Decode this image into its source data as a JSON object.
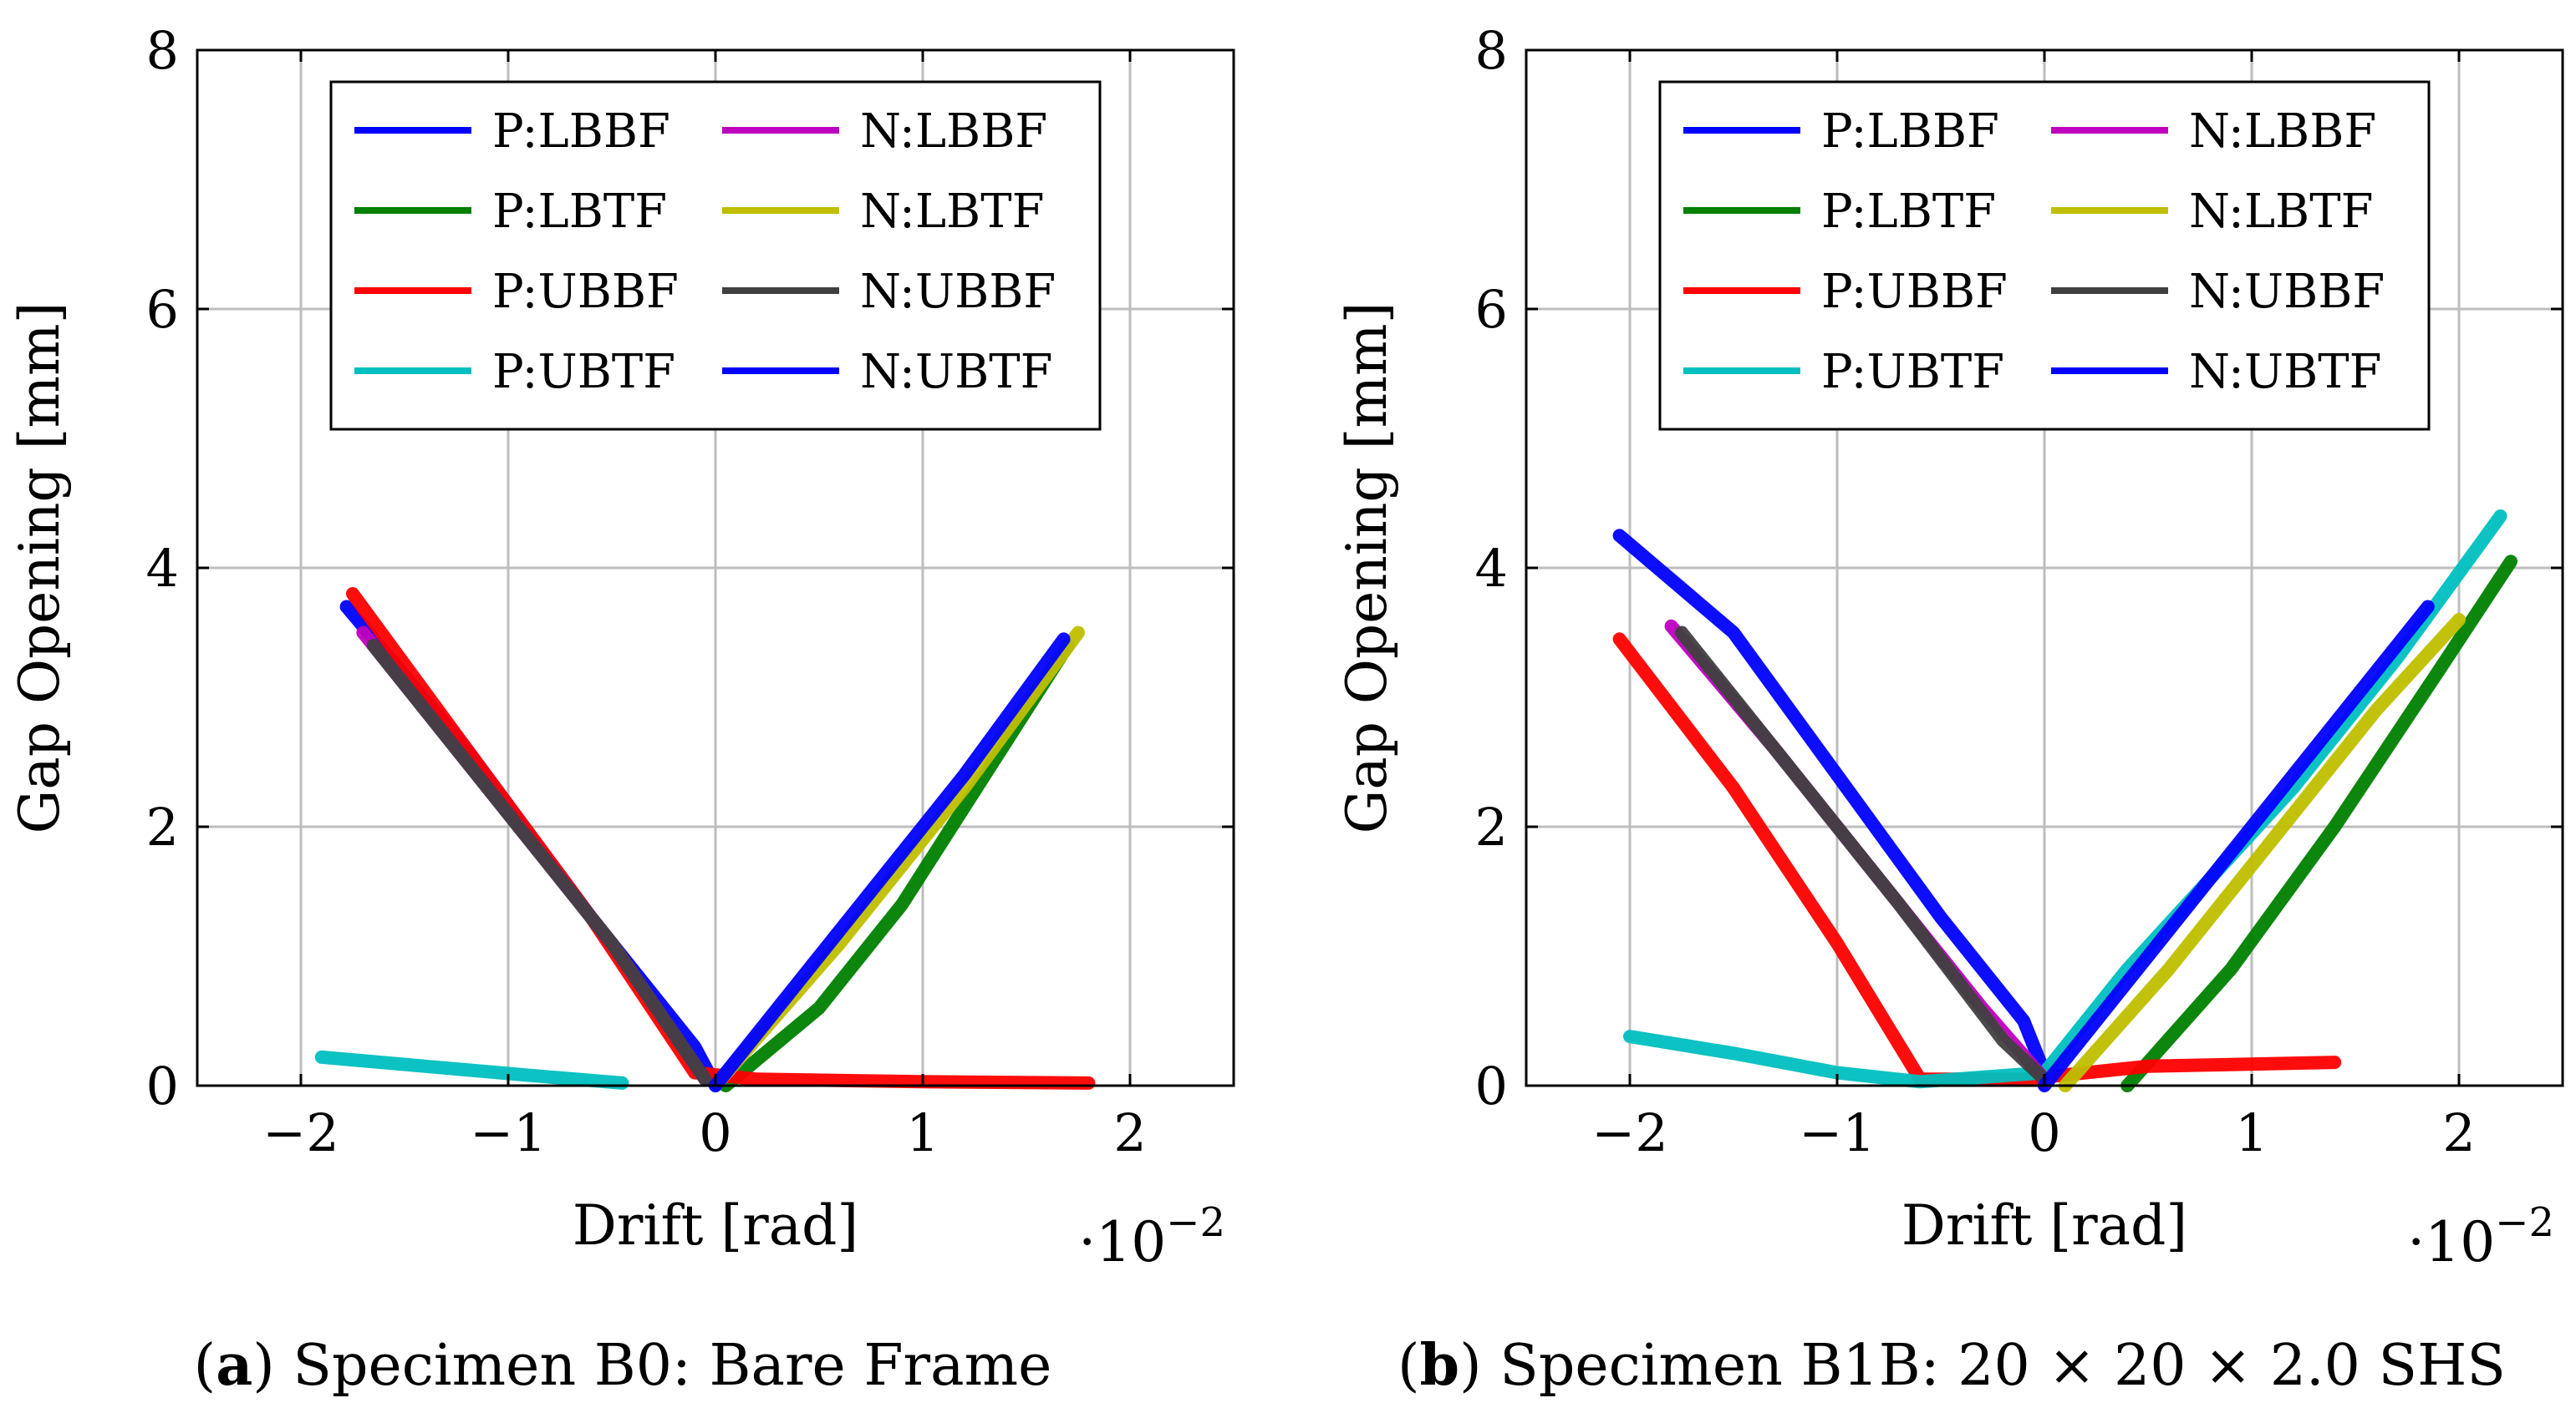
{
  "chart_data": [
    {
      "type": "line",
      "panel_label": "(a)",
      "caption_letter": "a",
      "caption_text": "Specimen B0: Bare Frame",
      "xlabel": "Drift [rad]",
      "ylabel": "Gap Opening [mm]",
      "x_multiplier": "·10",
      "x_multiplier_exp": "−2",
      "xlim": [
        -2.5,
        2.5
      ],
      "ylim": [
        0,
        8
      ],
      "xticks": [
        -2,
        -1,
        0,
        1,
        2
      ],
      "xtick_labels": [
        "−2",
        "−1",
        "0",
        "1",
        "2"
      ],
      "yticks": [
        0,
        2,
        4,
        6,
        8
      ],
      "ytick_labels": [
        "0",
        "2",
        "4",
        "6",
        "8"
      ],
      "grid": true,
      "legend_position": "top-center",
      "series": [
        {
          "name": "P:LBBF",
          "color": "#0000ff",
          "x": [
            -1.78,
            -1.2,
            -0.6,
            -0.1,
            0.0
          ],
          "y": [
            3.7,
            2.6,
            1.3,
            0.3,
            0.0
          ]
        },
        {
          "name": "P:LBTF",
          "color": "#008000",
          "x": [
            0.05,
            0.5,
            0.9,
            1.3,
            1.7
          ],
          "y": [
            0.0,
            0.6,
            1.4,
            2.4,
            3.4
          ]
        },
        {
          "name": "P:UBBF",
          "color": "#ff0000",
          "x": [
            -1.75,
            -1.2,
            -0.6,
            -0.1,
            0.2,
            1.0,
            1.8
          ],
          "y": [
            3.8,
            2.6,
            1.3,
            0.1,
            0.05,
            0.03,
            0.02
          ]
        },
        {
          "name": "P:UBTF",
          "color": "#00bfbf",
          "x": [
            -1.9,
            -1.4,
            -0.9,
            -0.45
          ],
          "y": [
            0.22,
            0.15,
            0.08,
            0.02
          ]
        },
        {
          "name": "N:LBBF",
          "color": "#bf00bf",
          "x": [
            -1.7,
            -1.1,
            -0.5,
            -0.05
          ],
          "y": [
            3.5,
            2.3,
            1.1,
            0.05
          ]
        },
        {
          "name": "N:LBTF",
          "color": "#bfbf00",
          "x": [
            0.0,
            0.6,
            1.2,
            1.75
          ],
          "y": [
            0.0,
            1.1,
            2.3,
            3.5
          ]
        },
        {
          "name": "N:UBBF",
          "color": "#404040",
          "x": [
            -1.65,
            -1.1,
            -0.5,
            -0.05
          ],
          "y": [
            3.4,
            2.3,
            1.1,
            0.05
          ]
        },
        {
          "name": "N:UBTF",
          "color": "#0000ff",
          "x": [
            0.0,
            0.6,
            1.2,
            1.68
          ],
          "y": [
            0.0,
            1.2,
            2.4,
            3.45
          ]
        }
      ]
    },
    {
      "type": "line",
      "panel_label": "(b)",
      "caption_letter": "b",
      "caption_text": "Specimen B1B: 20 × 20 × 2.0 SHS",
      "xlabel": "Drift [rad]",
      "ylabel": "Gap Opening [mm]",
      "x_multiplier": "·10",
      "x_multiplier_exp": "−2",
      "xlim": [
        -2.5,
        2.5
      ],
      "ylim": [
        0,
        8
      ],
      "xticks": [
        -2,
        -1,
        0,
        1,
        2
      ],
      "xtick_labels": [
        "−2",
        "−1",
        "0",
        "1",
        "2"
      ],
      "yticks": [
        0,
        2,
        4,
        6,
        8
      ],
      "ytick_labels": [
        "0",
        "2",
        "4",
        "6",
        "8"
      ],
      "grid": true,
      "legend_position": "top-center",
      "series": [
        {
          "name": "P:LBBF",
          "color": "#0000ff",
          "x": [
            -2.05,
            -1.5,
            -1.0,
            -0.5,
            -0.1,
            0.0
          ],
          "y": [
            4.25,
            3.5,
            2.4,
            1.3,
            0.5,
            0.1
          ]
        },
        {
          "name": "P:LBTF",
          "color": "#008000",
          "x": [
            0.4,
            0.9,
            1.4,
            1.9,
            2.25
          ],
          "y": [
            0.0,
            0.9,
            2.0,
            3.2,
            4.05
          ]
        },
        {
          "name": "P:UBBF",
          "color": "#ff0000",
          "x": [
            -2.05,
            -1.5,
            -1.0,
            -0.6,
            -0.1,
            0.5,
            1.4
          ],
          "y": [
            3.45,
            2.3,
            1.1,
            0.05,
            0.05,
            0.15,
            0.18
          ]
        },
        {
          "name": "P:UBTF",
          "color": "#00bfbf",
          "x": [
            -2.0,
            -1.5,
            -1.0,
            -0.6,
            0.0,
            0.4,
            0.8,
            1.2,
            1.7,
            2.2
          ],
          "y": [
            0.38,
            0.25,
            0.1,
            0.03,
            0.1,
            0.9,
            1.6,
            2.3,
            3.3,
            4.4
          ]
        },
        {
          "name": "N:LBBF",
          "color": "#bf00bf",
          "x": [
            -1.8,
            -1.3,
            -0.8,
            -0.3,
            0.0
          ],
          "y": [
            3.55,
            2.6,
            1.6,
            0.6,
            0.05
          ]
        },
        {
          "name": "N:LBTF",
          "color": "#bfbf00",
          "x": [
            0.1,
            0.6,
            1.1,
            1.6,
            2.0
          ],
          "y": [
            0.0,
            0.9,
            1.9,
            2.9,
            3.6
          ]
        },
        {
          "name": "N:UBBF",
          "color": "#404040",
          "x": [
            -1.75,
            -1.2,
            -0.7,
            -0.2,
            0.0
          ],
          "y": [
            3.5,
            2.4,
            1.4,
            0.35,
            0.05
          ]
        },
        {
          "name": "N:UBTF",
          "color": "#0000ff",
          "x": [
            0.0,
            0.5,
            1.0,
            1.5,
            1.85
          ],
          "y": [
            0.0,
            1.0,
            2.0,
            3.0,
            3.7
          ]
        }
      ]
    }
  ]
}
